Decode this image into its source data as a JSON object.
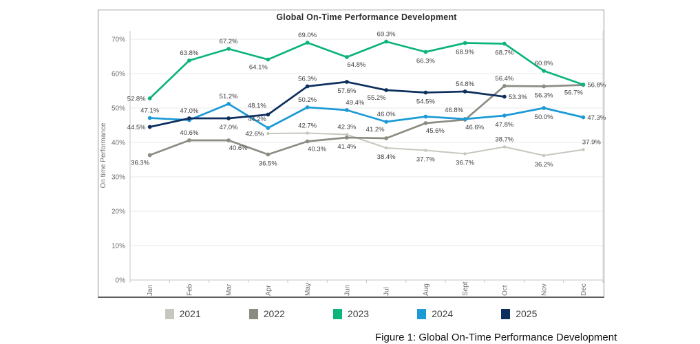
{
  "figure_caption": "Figure 1: Global On-Time Performance Development",
  "legend": {
    "position": "bottom",
    "items": [
      {
        "label": "2021",
        "color": "#c7c7bf"
      },
      {
        "label": "2022",
        "color": "#8b8c81"
      },
      {
        "label": "2023",
        "color": "#0bb47b"
      },
      {
        "label": "2024",
        "color": "#1b9ad6"
      },
      {
        "label": "2025",
        "color": "#0d2f5d"
      }
    ]
  },
  "chart_data": {
    "type": "line",
    "title": "Global On-Time Performance Development",
    "xlabel": "",
    "ylabel": "On time Performance",
    "categories": [
      "Jan",
      "Feb",
      "Mar",
      "Apr",
      "May",
      "Jun",
      "Jul",
      "Aug",
      "Sept",
      "Oct",
      "Nov",
      "Dec"
    ],
    "y_tick_values": [
      0,
      10,
      20,
      30,
      40,
      50,
      60,
      70
    ],
    "y_tick_labels": [
      "0%",
      "10%",
      "20%",
      "30%",
      "40%",
      "50%",
      "60%",
      "70%"
    ],
    "ylim": [
      0,
      75
    ],
    "grid": "horizontal",
    "legend_position": "bottom",
    "series": [
      {
        "name": "2021",
        "color": "#c7c7bf",
        "values": [
          null,
          null,
          null,
          42.6,
          42.7,
          42.3,
          38.4,
          37.7,
          36.7,
          38.7,
          36.2,
          37.9
        ],
        "labels": [
          null,
          null,
          null,
          "42.6%",
          "42.7%",
          "42.3%",
          "38.4%",
          "37.7%",
          "36.7%",
          "38.7%",
          "36.2%",
          "37.9%"
        ],
        "label_anchor": [
          null,
          null,
          null,
          "l",
          "a",
          "a",
          "b",
          "b",
          "b",
          "a",
          "b",
          "ar"
        ]
      },
      {
        "name": "2022",
        "color": "#8b8c81",
        "values": [
          36.3,
          40.6,
          40.6,
          36.5,
          40.3,
          41.4,
          41.2,
          45.6,
          46.6,
          56.4,
          56.3,
          56.7
        ],
        "labels": [
          "36.3%",
          "40.6%",
          "40.6%",
          "36.5%",
          "40.3%",
          "41.4%",
          "41.2%",
          "45.6%",
          "46.6%",
          "56.4%",
          "56.3%",
          "56.7%"
        ],
        "label_anchor": [
          "bl",
          "a",
          "br",
          "b",
          "br",
          "b",
          "al",
          "br",
          "br",
          "a",
          "b",
          "bl"
        ]
      },
      {
        "name": "2023",
        "color": "#0bb47b",
        "values": [
          52.8,
          63.8,
          67.2,
          64.1,
          69.0,
          64.8,
          69.3,
          66.3,
          68.9,
          68.7,
          60.8,
          56.8
        ],
        "labels": [
          "52.8%",
          "63.8%",
          "67.2%",
          "64.1%",
          "69.0%",
          "64.8%",
          "69.3%",
          "66.3%",
          "68.9%",
          "68.7%",
          "60.8%",
          "56.8%"
        ],
        "label_anchor": [
          "l",
          "a",
          "a",
          "bl",
          "a",
          "br",
          "a",
          "b",
          "b",
          "b",
          "a",
          "r"
        ]
      },
      {
        "name": "2024",
        "color": "#1b9ad6",
        "values": [
          47.1,
          46.5,
          51.2,
          44.2,
          50.2,
          49.4,
          46.0,
          47.5,
          46.8,
          47.8,
          50.0,
          47.3
        ],
        "labels": [
          "47.1%",
          null,
          "51.2%",
          "44.2%",
          "50.2%",
          "49.4%",
          "46.0%",
          null,
          "46.8%",
          "47.8%",
          "50.0%",
          "47.3%"
        ],
        "label_anchor": [
          "a",
          null,
          "a",
          "al",
          "a",
          "ar",
          "a",
          null,
          "al",
          "b",
          "b",
          "r"
        ]
      },
      {
        "name": "2025",
        "color": "#0d2f5d",
        "values": [
          44.5,
          47.0,
          47.0,
          48.1,
          56.3,
          57.6,
          55.2,
          54.5,
          54.8,
          53.3,
          null,
          null
        ],
        "labels": [
          "44.5%",
          "47.0%",
          "47.0%",
          "48.1%",
          "56.3%",
          "57.6%",
          "55.2%",
          "54.5%",
          "54.8%",
          "53.3%",
          null,
          null
        ],
        "label_anchor": [
          "l",
          "a",
          "b",
          "al",
          "a",
          "b",
          "bl",
          "b",
          "a",
          "r",
          null,
          null
        ]
      }
    ]
  }
}
